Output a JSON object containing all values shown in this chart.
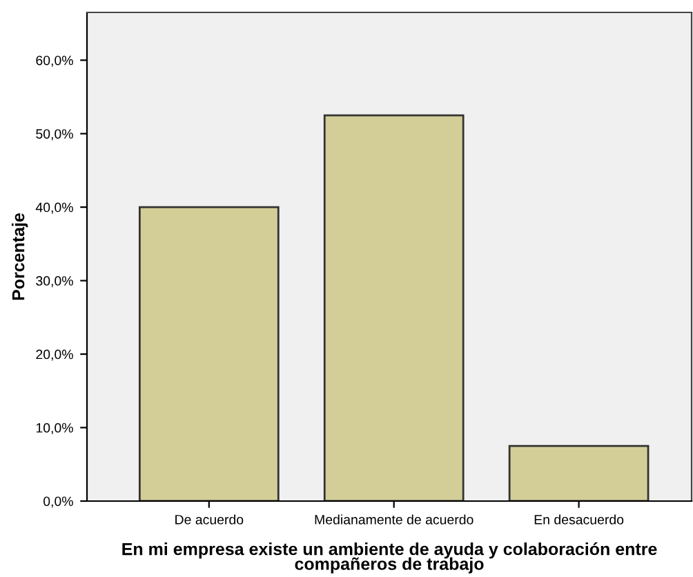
{
  "chart_data": {
    "type": "bar",
    "xlabel": "En mi empresa existe un ambiente de ayuda y colaboración entre\ncompañeros de trabajo",
    "ylabel": "Porcentaje",
    "categories": [
      "De acuerdo",
      "Medianamente de acuerdo",
      "En desacuerdo"
    ],
    "values": [
      40.0,
      52.5,
      7.5
    ],
    "color": "#d3ce97",
    "ylim": [
      0,
      66.5
    ],
    "yticks": [
      {
        "value": 0,
        "label": "0,0%"
      },
      {
        "value": 10,
        "label": "10,0%"
      },
      {
        "value": 20,
        "label": "20,0%"
      },
      {
        "value": 30,
        "label": "30,0%"
      },
      {
        "value": 40,
        "label": "40,0%"
      },
      {
        "value": 50,
        "label": "50,0%"
      },
      {
        "value": 60,
        "label": "60,0%"
      }
    ],
    "grid": false,
    "legend": false
  }
}
